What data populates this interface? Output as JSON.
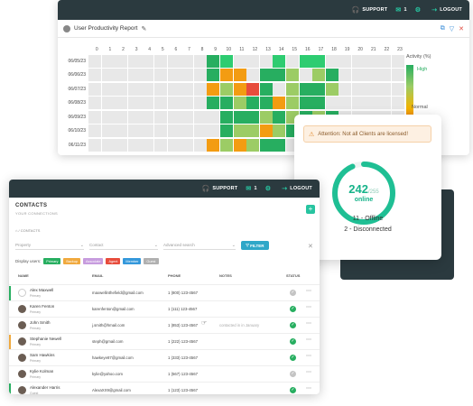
{
  "topbar": {
    "support": "SUPPORT",
    "badge": "1",
    "logout": "LOGOUT"
  },
  "report": {
    "title": "User Productivity Report",
    "hours": [
      "0",
      "1",
      "2",
      "3",
      "4",
      "5",
      "6",
      "7",
      "8",
      "9",
      "10",
      "11",
      "12",
      "13",
      "14",
      "15",
      "16",
      "17",
      "18",
      "19",
      "20",
      "21",
      "22",
      "23"
    ],
    "rows": [
      {
        "date": "06/05/23",
        "cells": "GGGGGGGGGDdGGGdGddGGGGGG"
      },
      {
        "date": "06/06/23",
        "cells": "GGGGGGGGGDOOGDDLGLDGGGGG"
      },
      {
        "date": "06/07/23",
        "cells": "GGGGGGGGGOLORDGLDDLGGGGG"
      },
      {
        "date": "06/08/23",
        "cells": "GGGGGGGGGDDLDDOLDDGGGGGG"
      },
      {
        "date": "06/09/23",
        "cells": "GGGGGGGGGGDDDLDLDLDGGGGG"
      },
      {
        "date": "06/10/23",
        "cells": "GGGGGGGGGGDLLOLDGGGGGGGG"
      },
      {
        "date": "06/11/23",
        "cells": "GGGGGGGGGOLOLDDGGGGGGGGG"
      }
    ],
    "legend": {
      "title": "Activity (%)",
      "high": "High",
      "normal": "Normal"
    }
  },
  "colors": {
    "G": "#e8e8e8",
    "D": "#27ae60",
    "d": "#2ecc71",
    "L": "#9ccc65",
    "O": "#f39c12",
    "R": "#e74c3c"
  },
  "popup": {
    "alert": "Attention: Not all Clients are licensed!",
    "online": "242",
    "total": "/255",
    "online_label": "online",
    "offline": "11 - Offline",
    "disconnected": "2 - Disconnected"
  },
  "contacts": {
    "title": "CONTACTS",
    "subtitle": "YOUR CONNECTIONS",
    "breadcrumb": "CONTACTS",
    "filters": {
      "property": "Property",
      "contact": "Contact",
      "search": "Advanced search",
      "button": "FILTER"
    },
    "display_users": "Display users:",
    "chips": [
      {
        "label": "Primary",
        "color": "#27ae60"
      },
      {
        "label": "Backup",
        "color": "#f0a93e"
      },
      {
        "label": "Associate",
        "color": "#c79cde"
      },
      {
        "label": "Agent",
        "color": "#e74c3c"
      },
      {
        "label": "Member",
        "color": "#3498db"
      },
      {
        "label": "Guest",
        "color": "#b0b0b0"
      }
    ],
    "headers": {
      "name": "NAME",
      "email": "EMAIL",
      "phone": "PHONE",
      "notes": "NOTES",
      "status": "STATUS"
    },
    "rows": [
      {
        "name": "Alex Maxwell",
        "role": "Primary",
        "email": "maxwellinthefield@gmail.com",
        "phone": "1 (800) 123-4567",
        "notes": "",
        "status": "grey",
        "stripe": "#27ae60",
        "avatar": "empty"
      },
      {
        "name": "Karen Fenton",
        "role": "Primary",
        "email": "karenfenton@gmail.com",
        "phone": "1 (111) 123-4567",
        "notes": "",
        "status": "green",
        "stripe": "",
        "avatar": "photo"
      },
      {
        "name": "John Smith",
        "role": "Primary",
        "email": "j.smith@hmail.com",
        "phone": "1 (853) 123-4567",
        "notes": "contacted in in January",
        "status": "green",
        "stripe": "",
        "avatar": "photo"
      },
      {
        "name": "Stephanie Newell",
        "role": "Primary",
        "email": "steph@gmail.com",
        "phone": "1 (222) 123-4567",
        "notes": "",
        "status": "green",
        "stripe": "#f0a93e",
        "avatar": "photo"
      },
      {
        "name": "Sam Hawkins",
        "role": "Primary",
        "email": "hawkeye87@gmail.com",
        "phone": "1 (333) 123-4567",
        "notes": "",
        "status": "green",
        "stripe": "",
        "avatar": "photo"
      },
      {
        "name": "Kylie Kolman",
        "role": "Primary",
        "email": "kylie@yahoo.com",
        "phone": "1 (567) 123-4567",
        "notes": "",
        "status": "grey",
        "stripe": "",
        "avatar": "photo"
      },
      {
        "name": "Alexander Harris",
        "role": "Guest",
        "email": "AlexaXX9@gmail.com",
        "phone": "1 (123) 123-4567",
        "notes": "",
        "status": "green",
        "stripe": "#27ae60",
        "avatar": "photo"
      }
    ]
  }
}
